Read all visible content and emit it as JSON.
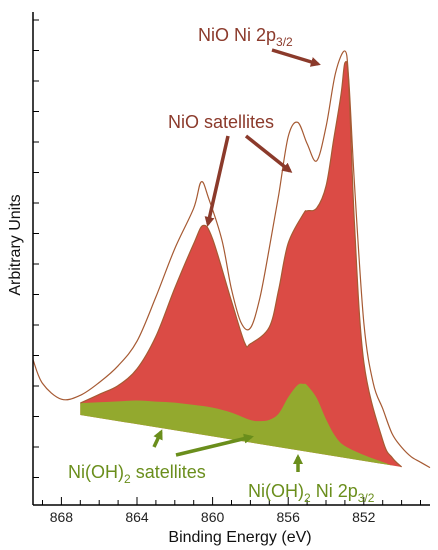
{
  "chart_data": {
    "type": "area",
    "xlabel": "Binding Energy (eV)",
    "ylabel": "Arbitrary Units",
    "x_reversed": true,
    "xlim": [
      869.5,
      848.5
    ],
    "ylim": [
      0,
      100
    ],
    "x_ticks": [
      868,
      864,
      860,
      856,
      852
    ],
    "y_tick_labels_shown": false,
    "grid": false,
    "series": [
      {
        "kind": "fill",
        "color": "#d9413b",
        "x": [
          867,
          866,
          865,
          864,
          863,
          862,
          861,
          860.5,
          860,
          859,
          858.3,
          858,
          857,
          856.5,
          856,
          855.2,
          855,
          854.5,
          854,
          853.6,
          853.2,
          853,
          852.8,
          852.5,
          852,
          851,
          850.5,
          850
        ],
        "y": [
          3,
          6,
          9,
          14,
          23,
          36,
          48,
          53,
          50,
          35,
          25,
          25,
          30,
          40,
          52,
          60,
          61,
          62,
          68,
          80,
          92,
          100,
          95,
          60,
          25,
          6,
          2,
          0
        ]
      },
      {
        "kind": "fill",
        "color": "#8fae2d",
        "x": [
          867,
          866,
          865,
          864,
          863,
          862,
          861,
          860,
          859,
          858,
          857.5,
          857,
          856.5,
          856,
          855.5,
          855.2,
          855,
          854.5,
          854,
          853.5,
          853,
          852,
          851,
          850.5
        ],
        "y": [
          3,
          4,
          5,
          6,
          6.5,
          7,
          7.2,
          7.3,
          6.8,
          5.7,
          5.8,
          6.5,
          8.5,
          13,
          16.5,
          17,
          16.8,
          14,
          9,
          5,
          3,
          1.5,
          0.5,
          0
        ]
      },
      {
        "kind": "line",
        "color": "#a65a33",
        "x": [
          869.5,
          869,
          868,
          867,
          866,
          865,
          864,
          863,
          862,
          861,
          860.6,
          860.2,
          859.5,
          859,
          858.5,
          858,
          857.5,
          857,
          856.5,
          856,
          855.5,
          855,
          854.5,
          854,
          853.5,
          853,
          852.8,
          852.5,
          852,
          851.5,
          851,
          850.5,
          850,
          849.5,
          849,
          848.5
        ],
        "y": [
          14,
          8,
          4,
          5,
          9,
          14,
          21,
          33,
          46,
          57,
          64,
          60,
          50,
          38,
          30,
          29,
          37,
          50,
          64,
          79,
          83,
          78,
          74,
          83,
          97,
          103,
          96,
          70,
          35,
          20,
          14,
          8,
          5,
          3,
          2,
          1
        ]
      },
      {
        "kind": "line",
        "color": "#a65a33",
        "x": [
          867,
          866,
          865,
          864,
          863,
          862,
          861,
          860.5,
          860,
          859,
          858.3,
          858,
          857,
          856.5,
          856,
          855.2,
          855,
          854.5,
          854,
          853.6,
          853.2,
          853,
          852.8,
          852.5,
          852,
          851,
          850.5,
          850
        ],
        "y": [
          3,
          6,
          9,
          14,
          23,
          36,
          48,
          53,
          50,
          35,
          25,
          25,
          30,
          40,
          52,
          60,
          61,
          62,
          68,
          80,
          92,
          100,
          95,
          60,
          25,
          6,
          2,
          0
        ]
      }
    ],
    "annotations": {
      "brown": [
        {
          "pre": "NiO Ni 2p",
          "sub": "3/2",
          "post": ""
        },
        {
          "pre": "NiO satellites",
          "sub": "",
          "post": ""
        }
      ],
      "green": [
        {
          "pre": "Ni(OH)",
          "sub": "2",
          "post": " satellites"
        },
        {
          "pre": "Ni(OH)",
          "sub": "2",
          "post": " Ni 2p"
        }
      ],
      "green_extra_sub": "3/2"
    },
    "colors": {
      "nio_fill": "#d9413b",
      "nioh_fill": "#8fae2d",
      "data_line": "#a65a33",
      "brown_arrow": "#8b3a2b",
      "green_arrow": "#6a8e1c"
    }
  }
}
